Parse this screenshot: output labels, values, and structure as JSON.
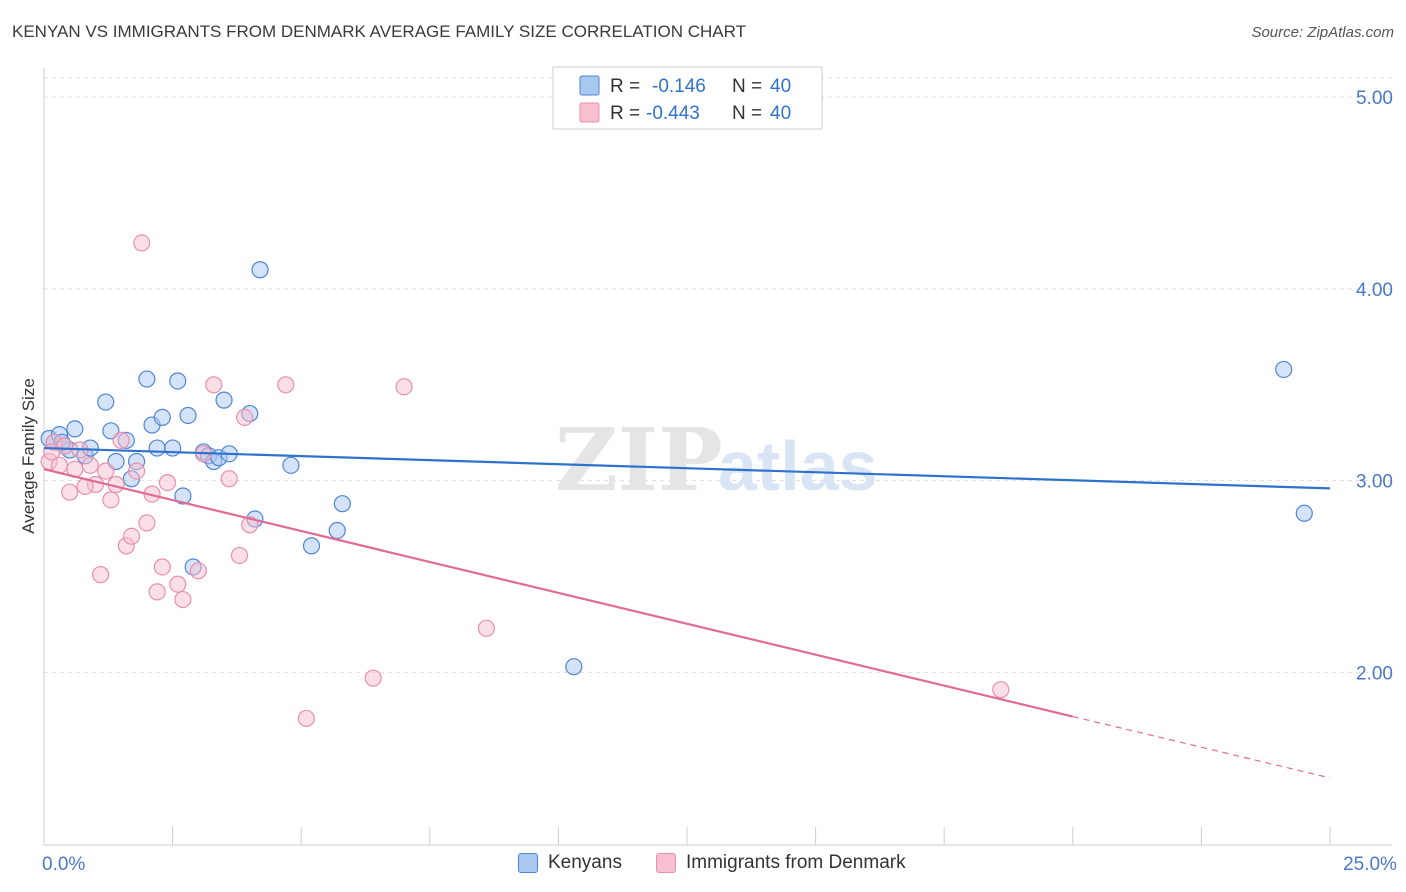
{
  "title": "KENYAN VS IMMIGRANTS FROM DENMARK AVERAGE FAMILY SIZE CORRELATION CHART",
  "source": "Source: ZipAtlas.com",
  "watermark": {
    "zip": "ZIP",
    "atlas": "atlas"
  },
  "colors": {
    "blue_fill": "#a9c8f0",
    "blue_stroke": "#4f86d4",
    "blue_line": "#2f72cc",
    "pink_fill": "#f7bfd0",
    "pink_stroke": "#e890ae",
    "pink_line": "#e06b97",
    "tick_label": "#4a78c8",
    "grid": "#dddddd"
  },
  "legend_top": [
    {
      "r_label": "R =",
      "r_value": "-0.146",
      "n_label": "N =",
      "n_value": "40"
    },
    {
      "r_label": "R =",
      "r_value": "-0.443",
      "n_label": "N =",
      "n_value": "40"
    }
  ],
  "chart_data": {
    "type": "scatter",
    "title": "KENYAN VS IMMIGRANTS FROM DENMARK AVERAGE FAMILY SIZE CORRELATION CHART",
    "xlabel": "",
    "ylabel": "Average Family Size",
    "xlim": [
      0,
      25
    ],
    "ylim": [
      1.1,
      5.1
    ],
    "x_tick_labels": [
      {
        "value": 0,
        "label": "0.0%"
      },
      {
        "value": 25,
        "label": "25.0%"
      }
    ],
    "y_ticks": [
      {
        "value": 2.0,
        "label": "2.00"
      },
      {
        "value": 3.0,
        "label": "3.00"
      },
      {
        "value": 4.0,
        "label": "4.00"
      },
      {
        "value": 5.0,
        "label": "5.00"
      }
    ],
    "x_minor_ticks": [
      2.5,
      5.0,
      7.5,
      10.0,
      12.5,
      15.0,
      17.5,
      20.0,
      22.5,
      25.0
    ],
    "grid": true,
    "legend_position": "top-center",
    "series": [
      {
        "name": "Kenyans",
        "color": "#4f86d4",
        "trend": {
          "x0": 0,
          "y0": 3.17,
          "x1": 25,
          "y1": 2.96
        },
        "points": [
          [
            0.1,
            3.22
          ],
          [
            0.2,
            3.2
          ],
          [
            0.3,
            3.24
          ],
          [
            0.4,
            3.18
          ],
          [
            0.5,
            3.16
          ],
          [
            0.6,
            3.27
          ],
          [
            0.8,
            3.13
          ],
          [
            0.9,
            3.17
          ],
          [
            1.2,
            3.41
          ],
          [
            1.3,
            3.26
          ],
          [
            1.4,
            3.1
          ],
          [
            1.6,
            3.21
          ],
          [
            1.7,
            3.01
          ],
          [
            1.8,
            3.1
          ],
          [
            2.0,
            3.53
          ],
          [
            2.1,
            3.29
          ],
          [
            2.2,
            3.17
          ],
          [
            2.3,
            3.33
          ],
          [
            2.5,
            3.17
          ],
          [
            2.6,
            3.52
          ],
          [
            2.7,
            2.92
          ],
          [
            2.8,
            3.34
          ],
          [
            2.9,
            2.55
          ],
          [
            3.1,
            3.15
          ],
          [
            3.2,
            3.13
          ],
          [
            3.3,
            3.1
          ],
          [
            3.4,
            3.12
          ],
          [
            3.5,
            3.42
          ],
          [
            3.6,
            3.14
          ],
          [
            4.0,
            3.35
          ],
          [
            4.1,
            2.8
          ],
          [
            4.2,
            4.1
          ],
          [
            4.8,
            3.08
          ],
          [
            5.2,
            2.66
          ],
          [
            5.7,
            2.74
          ],
          [
            5.8,
            2.88
          ],
          [
            10.3,
            2.03
          ],
          [
            24.1,
            3.58
          ],
          [
            24.5,
            2.83
          ],
          [
            0.35,
            3.2
          ]
        ]
      },
      {
        "name": "Immigrants from Denmark",
        "color": "#e890ae",
        "trend": {
          "x0": 0,
          "y0": 3.06,
          "x1": 20,
          "y1": 1.77
        },
        "trend_dashed": {
          "x0": 20,
          "y0": 1.77,
          "x1": 25,
          "y1": 1.45
        },
        "points": [
          [
            0.1,
            3.1
          ],
          [
            0.2,
            3.2
          ],
          [
            0.3,
            3.08
          ],
          [
            0.4,
            3.18
          ],
          [
            0.5,
            2.94
          ],
          [
            0.6,
            3.06
          ],
          [
            0.7,
            3.16
          ],
          [
            0.9,
            3.08
          ],
          [
            1.0,
            2.98
          ],
          [
            1.1,
            2.51
          ],
          [
            1.2,
            3.05
          ],
          [
            1.3,
            2.9
          ],
          [
            1.4,
            2.98
          ],
          [
            1.5,
            3.21
          ],
          [
            1.6,
            2.66
          ],
          [
            1.7,
            2.71
          ],
          [
            1.8,
            3.05
          ],
          [
            1.9,
            4.24
          ],
          [
            2.0,
            2.78
          ],
          [
            2.1,
            2.93
          ],
          [
            2.2,
            2.42
          ],
          [
            2.3,
            2.55
          ],
          [
            2.4,
            2.99
          ],
          [
            2.6,
            2.46
          ],
          [
            2.7,
            2.38
          ],
          [
            3.0,
            2.53
          ],
          [
            3.1,
            3.14
          ],
          [
            3.3,
            3.5
          ],
          [
            3.6,
            3.01
          ],
          [
            3.8,
            2.61
          ],
          [
            3.9,
            3.33
          ],
          [
            4.0,
            2.77
          ],
          [
            4.7,
            3.5
          ],
          [
            5.1,
            1.76
          ],
          [
            6.4,
            1.97
          ],
          [
            7.0,
            3.49
          ],
          [
            8.6,
            2.23
          ],
          [
            18.6,
            1.91
          ],
          [
            0.15,
            3.15
          ],
          [
            0.8,
            2.97
          ]
        ]
      }
    ]
  }
}
